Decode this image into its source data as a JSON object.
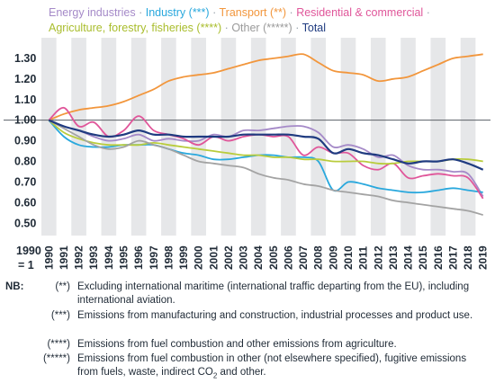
{
  "chart_data": {
    "type": "line",
    "x": [
      "1990",
      "1991",
      "1992",
      "1993",
      "1994",
      "1995",
      "1996",
      "1997",
      "1998",
      "1999",
      "2000",
      "2001",
      "2002",
      "2003",
      "2004",
      "2005",
      "2006",
      "2007",
      "2008",
      "2009",
      "2010",
      "2011",
      "2012",
      "2013",
      "2014",
      "2015",
      "2016",
      "2017",
      "2018",
      "2019"
    ],
    "ylim": [
      0.44,
      1.4
    ],
    "yticks": [
      0.5,
      0.6,
      0.7,
      0.8,
      0.9,
      1.0,
      1.1,
      1.2,
      1.3
    ],
    "ytick_labels": [
      "0.50",
      "0.60",
      "0.70",
      "0.80",
      "0.90",
      "1.00",
      "1.10",
      "1.20",
      "1.30"
    ],
    "baseline_label_1": "1990",
    "baseline_label_2": "= 1",
    "reference_line": 1.0,
    "grid": "alternating vertical bands",
    "series": [
      {
        "name": "Energy industries",
        "color": "#a58ac8",
        "values": [
          1.0,
          0.97,
          0.95,
          0.92,
          0.9,
          0.91,
          0.93,
          0.9,
          0.91,
          0.9,
          0.9,
          0.93,
          0.92,
          0.95,
          0.95,
          0.96,
          0.97,
          0.97,
          0.94,
          0.87,
          0.88,
          0.86,
          0.82,
          0.83,
          0.78,
          0.76,
          0.76,
          0.75,
          0.74,
          0.63
        ]
      },
      {
        "name": "Industry (***)",
        "color": "#29a8dd",
        "values": [
          1.0,
          0.92,
          0.88,
          0.87,
          0.87,
          0.88,
          0.88,
          0.88,
          0.86,
          0.84,
          0.83,
          0.81,
          0.81,
          0.82,
          0.83,
          0.83,
          0.82,
          0.82,
          0.8,
          0.66,
          0.7,
          0.69,
          0.67,
          0.66,
          0.65,
          0.65,
          0.66,
          0.67,
          0.66,
          0.65
        ]
      },
      {
        "name": "Transport (**)",
        "color": "#f2963c",
        "values": [
          1.0,
          1.03,
          1.05,
          1.06,
          1.07,
          1.09,
          1.12,
          1.15,
          1.19,
          1.21,
          1.22,
          1.23,
          1.25,
          1.27,
          1.29,
          1.3,
          1.31,
          1.32,
          1.28,
          1.24,
          1.23,
          1.22,
          1.19,
          1.2,
          1.21,
          1.24,
          1.27,
          1.3,
          1.31,
          1.32
        ]
      },
      {
        "name": "Residential & commercial",
        "color": "#e0569a",
        "values": [
          1.0,
          1.06,
          0.97,
          0.99,
          0.92,
          0.95,
          1.02,
          0.95,
          0.93,
          0.91,
          0.88,
          0.92,
          0.9,
          0.92,
          0.93,
          0.92,
          0.92,
          0.83,
          0.87,
          0.84,
          0.84,
          0.78,
          0.76,
          0.79,
          0.72,
          0.73,
          0.74,
          0.73,
          0.72,
          0.62
        ]
      },
      {
        "name": "Agriculture, forestry, fisheries (****)",
        "color": "#b9cc3c",
        "values": [
          1.0,
          0.94,
          0.91,
          0.89,
          0.88,
          0.88,
          0.88,
          0.89,
          0.88,
          0.87,
          0.86,
          0.85,
          0.84,
          0.83,
          0.83,
          0.82,
          0.82,
          0.81,
          0.81,
          0.8,
          0.8,
          0.8,
          0.79,
          0.79,
          0.8,
          0.8,
          0.8,
          0.81,
          0.81,
          0.8
        ]
      },
      {
        "name": "Other (*****)",
        "color": "#a3a3a3",
        "values": [
          1.0,
          0.96,
          0.92,
          0.88,
          0.86,
          0.87,
          0.9,
          0.88,
          0.86,
          0.83,
          0.8,
          0.79,
          0.78,
          0.77,
          0.74,
          0.72,
          0.71,
          0.69,
          0.68,
          0.66,
          0.65,
          0.64,
          0.63,
          0.61,
          0.6,
          0.59,
          0.58,
          0.57,
          0.56,
          0.54
        ]
      },
      {
        "name": "Total",
        "color": "#1f3b80",
        "values": [
          1.0,
          0.97,
          0.95,
          0.93,
          0.92,
          0.93,
          0.95,
          0.93,
          0.93,
          0.92,
          0.92,
          0.92,
          0.92,
          0.93,
          0.93,
          0.93,
          0.93,
          0.92,
          0.91,
          0.84,
          0.86,
          0.84,
          0.83,
          0.81,
          0.79,
          0.8,
          0.8,
          0.81,
          0.79,
          0.76
        ]
      }
    ]
  },
  "legend": {
    "sep": "·"
  },
  "notes": {
    "nb_label": "NB:",
    "items": [
      {
        "key": "(**)",
        "text": "Excluding international maritime (international traffic departing from the EU), including international aviation."
      },
      {
        "key": "(***)",
        "text": "Emissions from manufacturing and construction, industrial processes and product use."
      },
      {
        "key": "(****)",
        "text": "Emissions from fuel combustion and other emissions from agriculture."
      },
      {
        "key": "(*****)",
        "text_before_sub": "Emissions from fuel combustion in other (not elsewhere specified), fugitive emissions from fuels, waste, indirect CO",
        "sub": "2",
        "text_after_sub": " and other."
      }
    ]
  }
}
